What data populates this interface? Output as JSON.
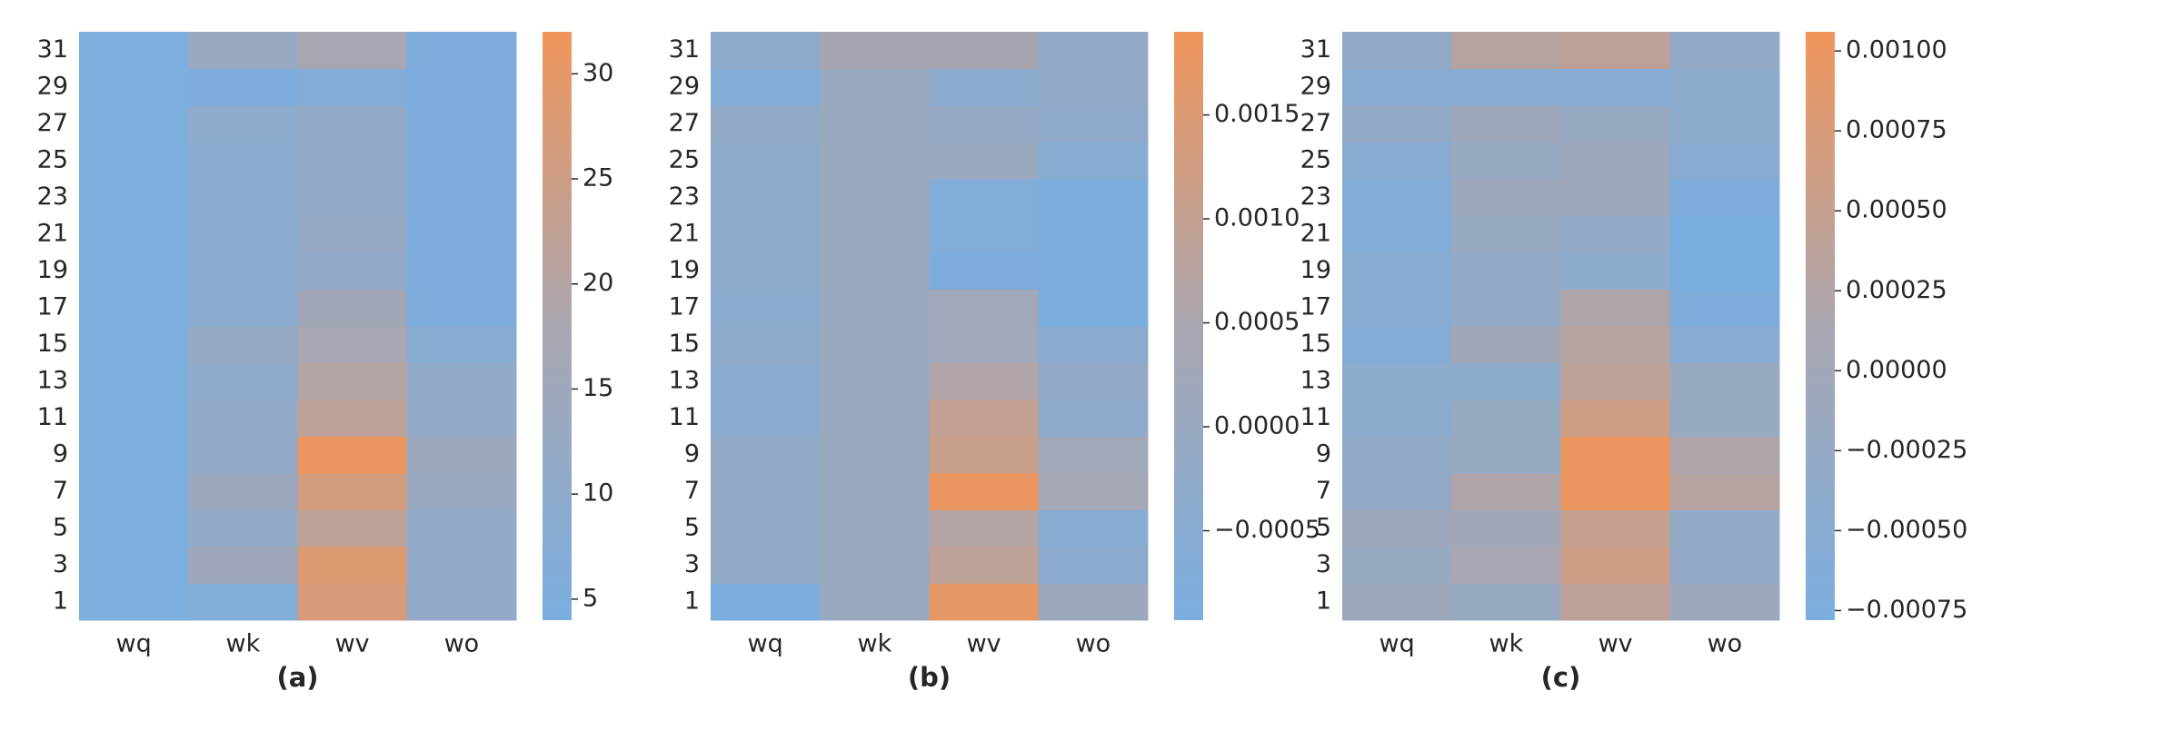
{
  "chart_data": [
    {
      "type": "heatmap",
      "title": "(a)",
      "categories": [
        "wq",
        "wk",
        "wv",
        "wo"
      ],
      "y_categories": [
        "1",
        "3",
        "5",
        "7",
        "9",
        "11",
        "13",
        "15",
        "17",
        "19",
        "21",
        "23",
        "25",
        "27",
        "29",
        "31"
      ],
      "values": [
        [
          4.5,
          6,
          27,
          11
        ],
        [
          4.5,
          15,
          28,
          11
        ],
        [
          4.5,
          11,
          22,
          11
        ],
        [
          4.5,
          14,
          26,
          13
        ],
        [
          4.5,
          11,
          31,
          14
        ],
        [
          4.5,
          11,
          22,
          11
        ],
        [
          4.5,
          10,
          20,
          11
        ],
        [
          4.5,
          12,
          17,
          8
        ],
        [
          4.5,
          9,
          16,
          5
        ],
        [
          4.5,
          9,
          11,
          5
        ],
        [
          4.5,
          9,
          12,
          5
        ],
        [
          4.5,
          9,
          11,
          5
        ],
        [
          4.5,
          9,
          11,
          5
        ],
        [
          4.5,
          10,
          11,
          5
        ],
        [
          4.5,
          5,
          7,
          5
        ],
        [
          4.5,
          13,
          17,
          5
        ]
      ],
      "zlim": [
        4,
        32
      ],
      "zticks": [
        5,
        10,
        15,
        20,
        25,
        30
      ],
      "colormap": [
        "#7aaee0",
        "#a9a6b0",
        "#f0955a"
      ]
    },
    {
      "type": "heatmap",
      "title": "(b)",
      "categories": [
        "wq",
        "wk",
        "wv",
        "wo"
      ],
      "y_categories": [
        "1",
        "3",
        "5",
        "7",
        "9",
        "11",
        "13",
        "15",
        "17",
        "19",
        "21",
        "23",
        "25",
        "27",
        "29",
        "31"
      ],
      "values": [
        [
          -0.0009,
          0,
          0.0017,
          0.0001
        ],
        [
          -0.0002,
          0,
          0.0009,
          -0.0004
        ],
        [
          -0.0002,
          0,
          0.0007,
          -0.0005
        ],
        [
          -0.0002,
          0,
          0.0018,
          0.0003
        ],
        [
          -0.0002,
          0,
          0.0011,
          0.0002
        ],
        [
          -0.0004,
          0,
          0.001,
          -0.0003
        ],
        [
          -0.0004,
          0,
          0.0006,
          -0.0002
        ],
        [
          -0.0003,
          0,
          0.0002,
          -0.0004
        ],
        [
          -0.0004,
          0,
          0.0002,
          -0.0009
        ],
        [
          -0.0003,
          0,
          -0.0008,
          -0.0009
        ],
        [
          -0.0003,
          0,
          -0.0007,
          -0.0009
        ],
        [
          -0.0003,
          0,
          -0.0007,
          -0.0009
        ],
        [
          -0.0003,
          0,
          0,
          -0.0005
        ],
        [
          -0.0002,
          0,
          -0.0001,
          -0.0003
        ],
        [
          -0.0006,
          0,
          -0.0004,
          -0.0002
        ],
        [
          -0.0003,
          0.0004,
          0.0004,
          -0.0002
        ]
      ],
      "zlim": [
        -0.00093,
        0.0019
      ],
      "zticks": [
        {
          "value": -0.0005,
          "label": "−0.0005"
        },
        {
          "value": 0,
          "label": "0.0000"
        },
        0.0005,
        {
          "value": 0.001,
          "label": "0.0010"
        },
        0.0015
      ],
      "colormap": [
        "#7aaee0",
        "#a9a6b0",
        "#f0955a"
      ]
    },
    {
      "type": "heatmap",
      "title": "(c)",
      "categories": [
        "wq",
        "wk",
        "wv",
        "wo"
      ],
      "y_categories": [
        "1",
        "3",
        "5",
        "7",
        "9",
        "11",
        "13",
        "15",
        "17",
        "19",
        "21",
        "23",
        "25",
        "27",
        "29",
        "31"
      ],
      "values": [
        [
          -0.0001,
          -0.0002,
          0.0004,
          -0.0001
        ],
        [
          -0.0002,
          0.0001,
          0.0006,
          -0.0003
        ],
        [
          -0.0001,
          0,
          0.0005,
          -0.0003
        ],
        [
          -0.0003,
          0.0002,
          0.001,
          0.0003
        ],
        [
          -0.0003,
          -0.0002,
          0.001,
          0.0002
        ],
        [
          -0.0004,
          -0.0002,
          0.0006,
          -0.0002
        ],
        [
          -0.0004,
          -0.0004,
          0.0004,
          -0.0002
        ],
        [
          -0.0006,
          0,
          0.0003,
          -0.0005
        ],
        [
          -0.0005,
          -0.0003,
          0.0002,
          -0.0007
        ],
        [
          -0.0005,
          -0.0003,
          -0.0004,
          -0.0008
        ],
        [
          -0.0006,
          -0.0002,
          -0.0003,
          -0.0008
        ],
        [
          -0.0006,
          -0.0001,
          -0.0001,
          -0.0007
        ],
        [
          -0.0005,
          -0.0002,
          -0.0001,
          -0.0005
        ],
        [
          -0.0003,
          -0.0001,
          -0.0002,
          -0.0004
        ],
        [
          -0.0005,
          -0.0005,
          -0.0005,
          -0.0004
        ],
        [
          -0.0003,
          0.0003,
          0.0004,
          -0.0003
        ]
      ],
      "zlim": [
        -0.00078,
        0.00106
      ],
      "zticks": [
        {
          "value": -0.00075,
          "label": "−0.00075"
        },
        {
          "value": -0.0005,
          "label": "−0.00050"
        },
        {
          "value": -0.00025,
          "label": "−0.00025"
        },
        {
          "value": 0,
          "label": "0.00000"
        },
        {
          "value": 0.00025,
          "label": "0.00025"
        },
        {
          "value": 0.0005,
          "label": "0.00050"
        },
        {
          "value": 0.00075,
          "label": "0.00075"
        },
        {
          "value": 0.001,
          "label": "0.00100"
        }
      ],
      "colormap": [
        "#7aaee0",
        "#a9a6b0",
        "#f0955a"
      ]
    }
  ]
}
